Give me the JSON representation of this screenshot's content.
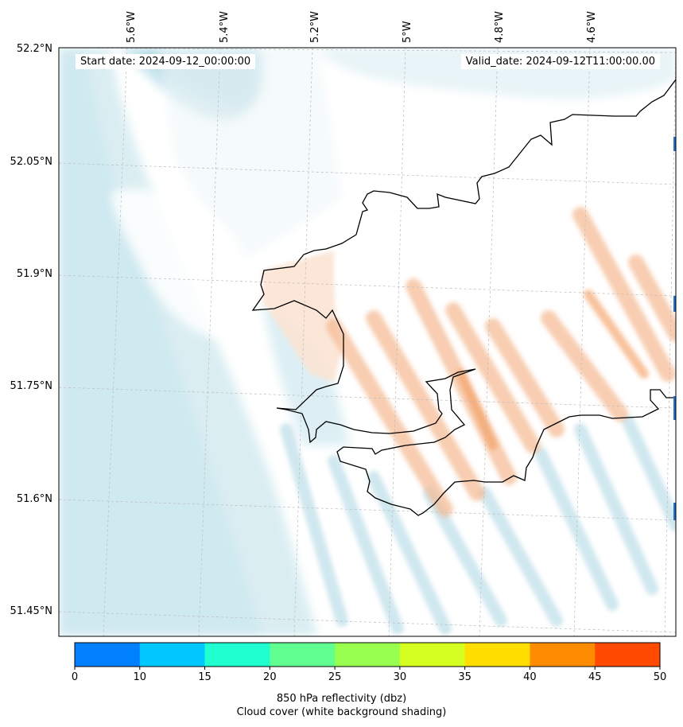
{
  "map": {
    "start_label": "Start date: 2024-09-12_00:00:00",
    "valid_label": "Valid_date: 2024-09-12T11:00:00.00",
    "lat_ticks": [
      "52.2°N",
      "52.05°N",
      "51.9°N",
      "51.75°N",
      "51.6°N",
      "51.45°N"
    ],
    "lon_ticks": [
      "5.6°W",
      "5.4°W",
      "5.2°W",
      "5°W",
      "4.8°W",
      "4.6°W"
    ],
    "colors": {
      "coast": "#000000",
      "cloud": "#bfe1ea",
      "reflectivity_warm": "#f4a46a",
      "grid": "#bbbbbb"
    }
  },
  "colorbar": {
    "ticks": [
      "0",
      "10",
      "15",
      "20",
      "25",
      "30",
      "35",
      "40",
      "45",
      "50"
    ],
    "colors": [
      "#0080ff",
      "#00c8ff",
      "#20ffd0",
      "#60ff90",
      "#98ff50",
      "#d4ff20",
      "#ffde00",
      "#ff8c00",
      "#ff4a00"
    ],
    "title_line1": "850 hPa reflectivity (dbz)",
    "title_line2": "Cloud cover (white background shading)"
  }
}
